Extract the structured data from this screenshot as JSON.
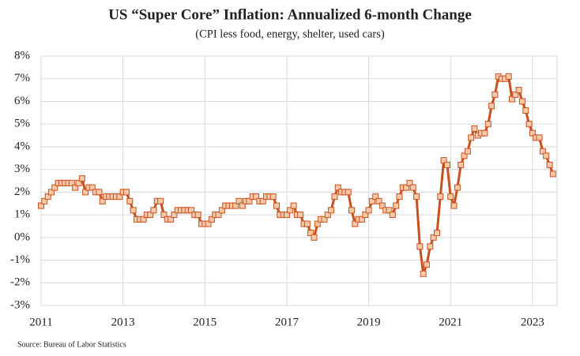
{
  "chart_data": {
    "type": "line",
    "title": "US “Super Core” Inflation: Annualized 6-month Change",
    "subtitle": "(CPI less food, energy, shelter, used cars)",
    "source": "Source: Bureau of Labor Statistics",
    "x": [
      2011,
      2011.083,
      2011.167,
      2011.25,
      2011.333,
      2011.417,
      2011.5,
      2011.583,
      2011.667,
      2011.75,
      2011.833,
      2011.917,
      2012,
      2012.083,
      2012.167,
      2012.25,
      2012.333,
      2012.417,
      2012.5,
      2012.583,
      2012.667,
      2012.75,
      2012.833,
      2012.917,
      2013,
      2013.083,
      2013.167,
      2013.25,
      2013.333,
      2013.417,
      2013.5,
      2013.583,
      2013.667,
      2013.75,
      2013.833,
      2013.917,
      2014,
      2014.083,
      2014.167,
      2014.25,
      2014.333,
      2014.417,
      2014.5,
      2014.583,
      2014.667,
      2014.75,
      2014.833,
      2014.917,
      2015,
      2015.083,
      2015.167,
      2015.25,
      2015.333,
      2015.417,
      2015.5,
      2015.583,
      2015.667,
      2015.75,
      2015.833,
      2015.917,
      2016,
      2016.083,
      2016.167,
      2016.25,
      2016.333,
      2016.417,
      2016.5,
      2016.583,
      2016.667,
      2016.75,
      2016.833,
      2016.917,
      2017,
      2017.083,
      2017.167,
      2017.25,
      2017.333,
      2017.417,
      2017.5,
      2017.583,
      2017.667,
      2017.75,
      2017.833,
      2017.917,
      2018,
      2018.083,
      2018.167,
      2018.25,
      2018.333,
      2018.417,
      2018.5,
      2018.583,
      2018.667,
      2018.75,
      2018.833,
      2018.917,
      2019,
      2019.083,
      2019.167,
      2019.25,
      2019.333,
      2019.417,
      2019.5,
      2019.583,
      2019.667,
      2019.75,
      2019.833,
      2019.917,
      2020,
      2020.083,
      2020.167,
      2020.25,
      2020.333,
      2020.417,
      2020.5,
      2020.583,
      2020.667,
      2020.75,
      2020.833,
      2020.917,
      2021,
      2021.083,
      2021.167,
      2021.25,
      2021.333,
      2021.417,
      2021.5,
      2021.583,
      2021.667,
      2021.75,
      2021.833,
      2021.917,
      2022,
      2022.083,
      2022.167,
      2022.25,
      2022.333,
      2022.417,
      2022.5,
      2022.583,
      2022.667,
      2022.75,
      2022.833,
      2022.917,
      2023,
      2023.083,
      2023.167,
      2023.25,
      2023.333,
      2023.417,
      2023.5
    ],
    "values": [
      1.4,
      1.6,
      1.8,
      2.0,
      2.2,
      2.4,
      2.4,
      2.4,
      2.4,
      2.4,
      2.2,
      2.4,
      2.6,
      2.0,
      2.2,
      2.2,
      2.0,
      2.0,
      1.6,
      1.8,
      1.8,
      1.8,
      1.8,
      1.8,
      2.0,
      2.0,
      1.6,
      1.2,
      0.8,
      0.8,
      0.8,
      1.0,
      1.0,
      1.2,
      1.6,
      1.6,
      1.0,
      0.8,
      0.8,
      1.0,
      1.2,
      1.2,
      1.2,
      1.2,
      1.2,
      1.0,
      1.0,
      0.6,
      0.6,
      0.6,
      0.8,
      1.0,
      1.0,
      1.2,
      1.4,
      1.4,
      1.4,
      1.4,
      1.6,
      1.4,
      1.6,
      1.6,
      1.8,
      1.8,
      1.6,
      1.6,
      1.8,
      1.8,
      1.8,
      1.4,
      1.0,
      1.0,
      1.0,
      1.2,
      1.4,
      1.0,
      1.0,
      0.6,
      0.6,
      0.2,
      0.0,
      0.6,
      0.8,
      0.8,
      1.0,
      1.2,
      1.8,
      2.2,
      2.0,
      2.0,
      2.0,
      1.2,
      0.6,
      0.8,
      0.8,
      1.0,
      1.2,
      1.6,
      1.8,
      1.6,
      1.4,
      1.2,
      1.2,
      1.0,
      1.4,
      1.8,
      2.2,
      2.2,
      2.4,
      2.2,
      1.8,
      -0.4,
      -1.6,
      -1.2,
      -0.4,
      0.0,
      0.2,
      1.8,
      3.4,
      3.2,
      1.8,
      1.4,
      2.2,
      3.2,
      3.6,
      3.8,
      4.4,
      4.8,
      4.5,
      4.6,
      4.6,
      5.0,
      5.8,
      6.3,
      7.1,
      7.0,
      7.0,
      7.1,
      6.1,
      6.3,
      6.5,
      6.0,
      5.6,
      5.0,
      4.6,
      4.4,
      4.4,
      3.8,
      3.6,
      3.2,
      2.8
    ],
    "color": "#c8501e",
    "marker_fill": "#f7c9ab",
    "xlim": [
      2011,
      2023.6
    ],
    "xticks": [
      2011,
      2013,
      2015,
      2017,
      2019,
      2021,
      2023
    ],
    "ylim": [
      -3,
      8
    ],
    "yticks": [
      {
        "value": -3,
        "label": "-3%"
      },
      {
        "value": -2,
        "label": "-2%"
      },
      {
        "value": -1,
        "label": "-1%"
      },
      {
        "value": 0,
        "label": "0%"
      },
      {
        "value": 1,
        "label": "1%"
      },
      {
        "value": 2,
        "label": "2%"
      },
      {
        "value": 3,
        "label": "3%"
      },
      {
        "value": 4,
        "label": "4%"
      },
      {
        "value": 5,
        "label": "5%"
      },
      {
        "value": 6,
        "label": "6%"
      },
      {
        "value": 7,
        "label": "7%"
      },
      {
        "value": 8,
        "label": "8%"
      }
    ],
    "grid": true
  }
}
